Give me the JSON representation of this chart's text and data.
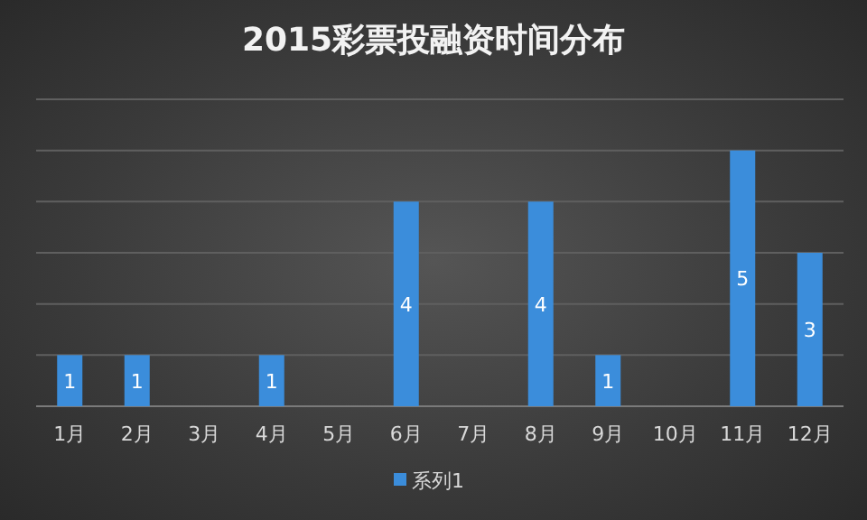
{
  "chart_data": {
    "type": "bar",
    "title": "2015彩票投融资时间分布",
    "categories": [
      "1月",
      "2月",
      "3月",
      "4月",
      "5月",
      "6月",
      "7月",
      "8月",
      "9月",
      "10月",
      "11月",
      "12月"
    ],
    "series": [
      {
        "name": "系列1",
        "color": "#3b8ddb",
        "values": [
          1,
          1,
          0,
          1,
          0,
          4,
          0,
          4,
          1,
          0,
          5,
          3
        ],
        "value_labels": [
          "1",
          "1",
          null,
          "1",
          null,
          "4",
          null,
          "4",
          "1",
          null,
          "5",
          "3"
        ]
      }
    ],
    "ylim": [
      0,
      6
    ],
    "yticks": [
      {
        "value": 0,
        "label": null
      },
      {
        "value": 1,
        "label": null
      },
      {
        "value": 2,
        "label": null
      },
      {
        "value": 3,
        "label": null
      },
      {
        "value": 4,
        "label": null
      },
      {
        "value": 5,
        "label": null
      },
      {
        "value": 6,
        "label": null
      }
    ],
    "tick_labels": "x",
    "grid": "y",
    "legend": "bottom"
  }
}
